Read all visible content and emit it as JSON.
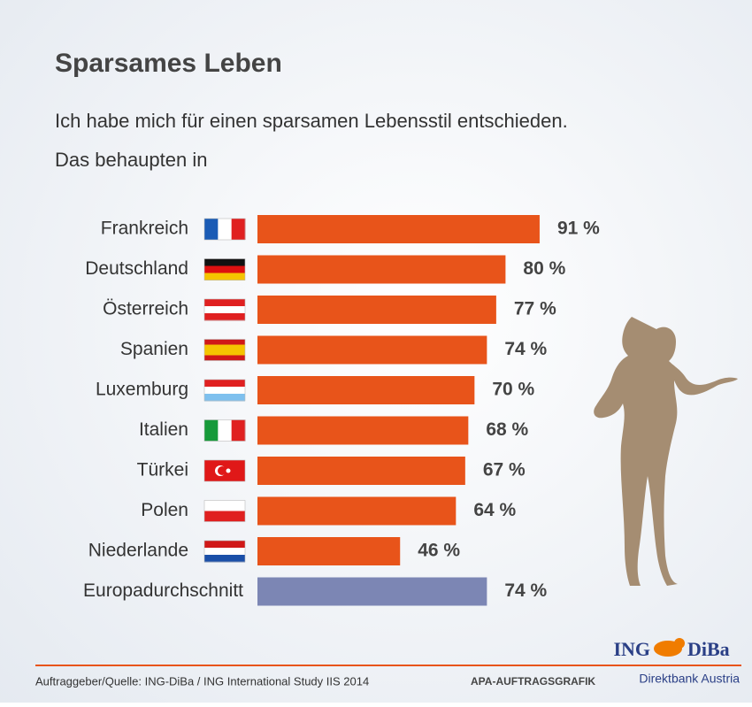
{
  "chart_data": {
    "type": "bar",
    "orientation": "horizontal",
    "title": "Sparsames Leben",
    "subtitle": [
      "Ich habe mich für einen sparsamen Lebensstil entschieden.",
      "Das behaupten in"
    ],
    "categories": [
      "Frankreich",
      "Deutschland",
      "Österreich",
      "Spanien",
      "Luxemburg",
      "Italien",
      "Türkei",
      "Polen",
      "Niederlande",
      "Europadurchschnitt"
    ],
    "values": [
      91,
      80,
      77,
      74,
      70,
      68,
      67,
      64,
      46,
      74
    ],
    "value_labels": [
      "91 %",
      "80 %",
      "77 %",
      "74 %",
      "70 %",
      "68 %",
      "67 %",
      "64 %",
      "46 %",
      "74 %"
    ],
    "colors": [
      "#e8541a",
      "#e8541a",
      "#e8541a",
      "#e8541a",
      "#e8541a",
      "#e8541a",
      "#e8541a",
      "#e8541a",
      "#e8541a",
      "#7c86b4"
    ],
    "source": "Auftraggeber/Quelle: ING-DiBa / ING International Study IIS 2014",
    "credit": "APA-AUFTRAGSGRAFIK",
    "logo": {
      "name_left": "ING",
      "name_right": "DiBa",
      "tagline": "Direktbank Austria"
    }
  }
}
